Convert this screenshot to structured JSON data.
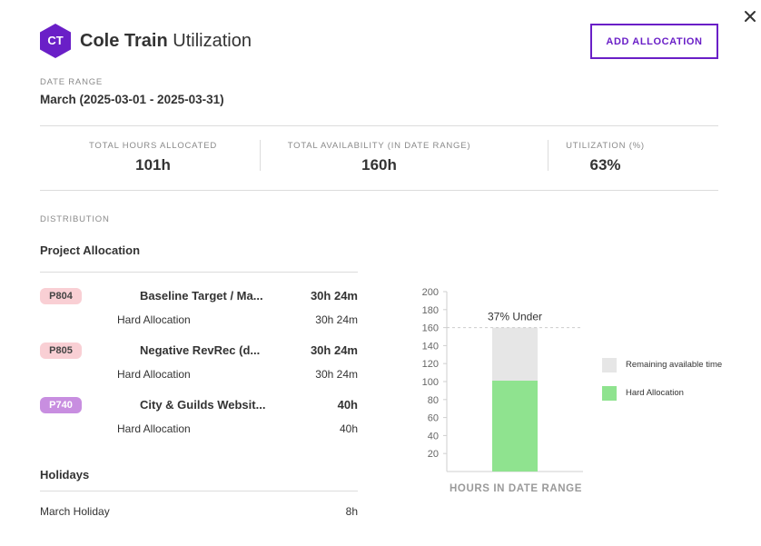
{
  "header": {
    "avatar_initials": "CT",
    "name": "Cole Train",
    "title_suffix": "Utilization",
    "add_allocation_label": "ADD ALLOCATION"
  },
  "date_range": {
    "label": "DATE RANGE",
    "value": "March (2025-03-01 - 2025-03-31)"
  },
  "stats": [
    {
      "label": "TOTAL HOURS ALLOCATED",
      "value": "101h"
    },
    {
      "label": "TOTAL AVAILABILITY (IN DATE RANGE)",
      "value": "160h"
    },
    {
      "label": "UTILIZATION (%)",
      "value": "63%"
    }
  ],
  "distribution": {
    "label": "DISTRIBUTION",
    "project_allocation_title": "Project Allocation",
    "projects": [
      {
        "code": "P804",
        "name": "Baseline Target / Ma...",
        "total": "30h 24m",
        "sub_label": "Hard Allocation",
        "sub_value": "30h 24m",
        "badge_color": "#f9cfd4"
      },
      {
        "code": "P805",
        "name": "Negative RevRec (d...",
        "total": "30h 24m",
        "sub_label": "Hard Allocation",
        "sub_value": "30h 24m",
        "badge_color": "#f9cfd4"
      },
      {
        "code": "P740",
        "name": "City & Guilds Websit...",
        "total": "40h",
        "sub_label": "Hard Allocation",
        "sub_value": "40h",
        "badge_color": "#c88ee0"
      }
    ],
    "holidays_title": "Holidays",
    "holidays": [
      {
        "name": "March Holiday",
        "value": "8h"
      }
    ]
  },
  "chart_data": {
    "type": "bar",
    "stacked": true,
    "categories": [
      ""
    ],
    "series": [
      {
        "name": "Hard Allocation",
        "values": [
          101
        ],
        "color": "#8fe38f"
      },
      {
        "name": "Remaining available time",
        "values": [
          59
        ],
        "color": "#e6e6e6"
      }
    ],
    "ylim": [
      0,
      200
    ],
    "yticks": [
      20,
      40,
      60,
      80,
      100,
      120,
      140,
      160,
      180,
      200
    ],
    "availability_line": 160,
    "annotation": "37% Under",
    "xlabel": "HOURS IN DATE RANGE",
    "legend_position": "right"
  },
  "colors": {
    "accent": "#6a1fc7",
    "avatar_bg": "#6a1fc7"
  }
}
